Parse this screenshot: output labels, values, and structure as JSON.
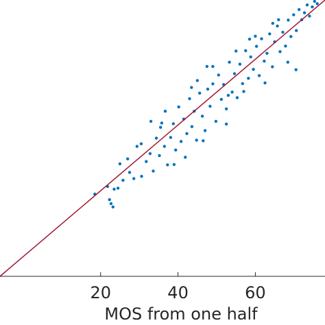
{
  "chart_data": {
    "type": "scatter",
    "title": "",
    "xlabel": "MOS from one half",
    "ylabel": "",
    "xlim": [
      -6,
      78
    ],
    "ylim": [
      -6,
      78
    ],
    "x_ticks": [
      20,
      40,
      60
    ],
    "x_tick_labels": [
      "20",
      "40",
      "60"
    ],
    "grid": false,
    "legend": "none",
    "colors": {
      "points": "#0072bd",
      "fit_line": "#a2142f",
      "axis": "#262626"
    },
    "fit_line": {
      "x": [
        -6,
        78
      ],
      "y": [
        -6,
        78
      ]
    },
    "series": [
      {
        "points": [
          [
            18.5,
            19.0
          ],
          [
            21.8,
            21.3
          ],
          [
            22.3,
            17.3
          ],
          [
            22.7,
            16.1
          ],
          [
            23.2,
            15.1
          ],
          [
            23.5,
            20.5
          ],
          [
            24.5,
            20.8
          ],
          [
            25.8,
            23.2
          ],
          [
            27.5,
            25.6
          ],
          [
            28.6,
            23.7
          ],
          [
            29.4,
            33.5
          ],
          [
            30.6,
            24.4
          ],
          [
            31.8,
            28.9
          ],
          [
            32.8,
            31.3
          ],
          [
            33.6,
            26.0
          ],
          [
            34.4,
            36.0
          ],
          [
            35.2,
            30.7
          ],
          [
            35.8,
            40.6
          ],
          [
            36.5,
            33.5
          ],
          [
            37.3,
            27.9
          ],
          [
            38.1,
            36.2
          ],
          [
            38.8,
            40.4
          ],
          [
            39.4,
            32.4
          ],
          [
            40.2,
            45.5
          ],
          [
            40.8,
            35.0
          ],
          [
            41.5,
            41.8
          ],
          [
            42.3,
            37.4
          ],
          [
            43.0,
            48.0
          ],
          [
            43.6,
            39.5
          ],
          [
            44.2,
            44.2
          ],
          [
            44.8,
            35.4
          ],
          [
            45.6,
            49.7
          ],
          [
            46.3,
            42.7
          ],
          [
            47.0,
            38.3
          ],
          [
            47.7,
            50.9
          ],
          [
            48.3,
            45.7
          ],
          [
            49.0,
            52.5
          ],
          [
            49.8,
            41.1
          ],
          [
            50.5,
            55.2
          ],
          [
            51.2,
            47.8
          ],
          [
            51.8,
            52.3
          ],
          [
            52.5,
            44.9
          ],
          [
            53.3,
            59.1
          ],
          [
            54.0,
            50.0
          ],
          [
            54.6,
            55.6
          ],
          [
            55.3,
            48.3
          ],
          [
            56.0,
            58.5
          ],
          [
            56.7,
            52.6
          ],
          [
            57.5,
            62.6
          ],
          [
            58.2,
            54.2
          ],
          [
            58.8,
            60.7
          ],
          [
            59.5,
            56.9
          ],
          [
            60.3,
            63.9
          ],
          [
            61.0,
            55.0
          ],
          [
            61.6,
            66.2
          ],
          [
            62.3,
            59.4
          ],
          [
            63.0,
            61.8
          ],
          [
            63.7,
            67.7
          ],
          [
            64.4,
            57.7
          ],
          [
            65.0,
            65.3
          ],
          [
            65.7,
            70.1
          ],
          [
            66.4,
            62.3
          ],
          [
            67.1,
            68.2
          ],
          [
            67.8,
            64.0
          ],
          [
            68.5,
            71.9
          ],
          [
            69.2,
            66.9
          ],
          [
            69.9,
            73.5
          ],
          [
            70.6,
            68.7
          ],
          [
            71.3,
            75.1
          ],
          [
            72.0,
            72.0
          ],
          [
            72.7,
            74.1
          ],
          [
            73.4,
            76.5
          ],
          [
            74.0,
            73.1
          ],
          [
            74.7,
            75.9
          ],
          [
            75.3,
            77.6
          ],
          [
            76.0,
            76.9
          ],
          [
            70.5,
            56.8
          ],
          [
            68.4,
            59.1
          ],
          [
            41.9,
            30.2
          ],
          [
            36.7,
            44.2
          ],
          [
            33.0,
            41.1
          ],
          [
            55.0,
            62.5
          ],
          [
            47.5,
            57.8
          ],
          [
            60.0,
            67.0
          ],
          [
            25.0,
            28.2
          ],
          [
            30.5,
            34.3
          ],
          [
            45.0,
            53.5
          ],
          [
            52.5,
            40.3
          ],
          [
            64.5,
            70.9
          ],
          [
            57.0,
            50.2
          ],
          [
            27.0,
            29.7
          ],
          [
            39.0,
            28.0
          ],
          [
            62.5,
            52.8
          ],
          [
            49.0,
            57.8
          ],
          [
            35.5,
            39.3
          ],
          [
            43.5,
            51.4
          ],
          [
            58.5,
            66.1
          ],
          [
            66.0,
            72.0
          ],
          [
            46.5,
            35.2
          ],
          [
            53.0,
            49.0
          ]
        ]
      }
    ]
  }
}
